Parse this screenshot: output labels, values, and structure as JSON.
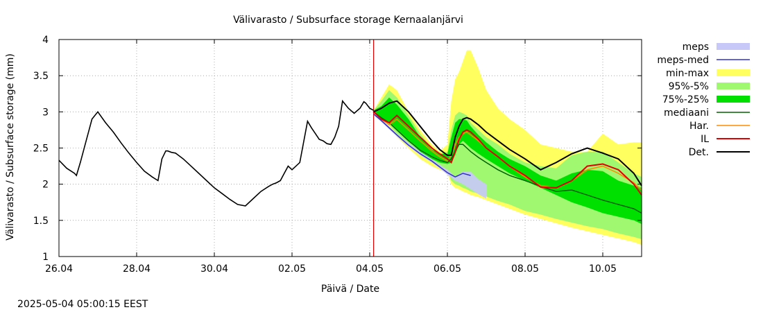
{
  "chart_data": {
    "type": "area",
    "title": "Välivarasto / Subsurface storage  Kernaalanjärvi",
    "xlabel": "Päivä / Date",
    "ylabel": "Välivarasto / Subsurface storage (mm)",
    "timestamp": "2025-05-04  05:00:15 EEST",
    "xlim": [
      0,
      15
    ],
    "ylim": [
      1,
      4
    ],
    "x_unit": "days since 26.04",
    "x_ticks": [
      {
        "x": 0,
        "label": "26.04"
      },
      {
        "x": 2,
        "label": "28.04"
      },
      {
        "x": 4,
        "label": "30.04"
      },
      {
        "x": 6,
        "label": "02.05"
      },
      {
        "x": 8,
        "label": "04.05"
      },
      {
        "x": 10,
        "label": "06.05"
      },
      {
        "x": 12,
        "label": "08.05"
      },
      {
        "x": 14,
        "label": "10.05"
      }
    ],
    "y_ticks": [
      {
        "y": 1,
        "label": "1"
      },
      {
        "y": 1.5,
        "label": "1.5"
      },
      {
        "y": 2,
        "label": "2"
      },
      {
        "y": 2.5,
        "label": "2.5"
      },
      {
        "y": 3,
        "label": "3"
      },
      {
        "y": 3.5,
        "label": "3.5"
      },
      {
        "y": 4,
        "label": "4"
      }
    ],
    "forecast_start": 8.1,
    "colors": {
      "meps": "#c8c8f8",
      "meps_med": "#3030c8",
      "minmax": "#ffff60",
      "p95_5": "#a0f870",
      "p75_25": "#00e000",
      "mediaani": "#006000",
      "har": "#ff8c00",
      "il": "#e00000",
      "det": "#000000",
      "forecast_line": "#e00000"
    },
    "legend": [
      {
        "key": "meps",
        "label": "meps",
        "style": "band"
      },
      {
        "key": "meps_med",
        "label": "meps-med",
        "style": "line"
      },
      {
        "key": "minmax",
        "label": "min-max",
        "style": "band"
      },
      {
        "key": "p95_5",
        "label": "95%-5%",
        "style": "band"
      },
      {
        "key": "p75_25",
        "label": "75%-25%",
        "style": "band"
      },
      {
        "key": "mediaani",
        "label": "mediaani",
        "style": "line"
      },
      {
        "key": "har",
        "label": "Har.",
        "style": "line"
      },
      {
        "key": "il",
        "label": "IL",
        "style": "line"
      },
      {
        "key": "det",
        "label": "Det.",
        "style": "line"
      }
    ],
    "observed": {
      "x": [
        0,
        0.2,
        0.4,
        0.45,
        0.55,
        0.7,
        0.85,
        1.0,
        1.2,
        1.4,
        1.6,
        1.8,
        2.0,
        2.2,
        2.4,
        2.55,
        2.65,
        2.75,
        2.8,
        2.9,
        3.0,
        3.2,
        3.4,
        3.6,
        3.8,
        4.0,
        4.2,
        4.4,
        4.6,
        4.8,
        5.0,
        5.2,
        5.4,
        5.5,
        5.6,
        5.7,
        5.8,
        5.9,
        6.0,
        6.2,
        6.4,
        6.5,
        6.6,
        6.7,
        6.8,
        6.9,
        7.0,
        7.1,
        7.2,
        7.3,
        7.45,
        7.6,
        7.75,
        7.85,
        7.9,
        8.0,
        8.1
      ],
      "y": [
        2.33,
        2.22,
        2.15,
        2.12,
        2.3,
        2.6,
        2.9,
        3.0,
        2.85,
        2.72,
        2.57,
        2.43,
        2.3,
        2.18,
        2.1,
        2.05,
        2.35,
        2.46,
        2.46,
        2.44,
        2.43,
        2.35,
        2.25,
        2.15,
        2.05,
        1.95,
        1.87,
        1.79,
        1.72,
        1.7,
        1.8,
        1.9,
        1.97,
        2.0,
        2.02,
        2.05,
        2.15,
        2.25,
        2.2,
        2.3,
        2.87,
        2.78,
        2.7,
        2.62,
        2.6,
        2.56,
        2.55,
        2.65,
        2.8,
        3.15,
        3.05,
        2.98,
        3.05,
        3.14,
        3.12,
        3.05,
        3.02
      ]
    },
    "forecast_x": [
      8.1,
      8.3,
      8.5,
      8.7,
      9.0,
      9.3,
      9.6,
      9.8,
      10.0,
      10.1,
      10.2,
      10.3,
      10.4,
      10.5,
      10.6,
      10.8,
      11.0,
      11.3,
      11.6,
      12.0,
      12.4,
      12.8,
      13.2,
      13.6,
      14.0,
      14.4,
      14.8,
      15.0
    ],
    "bands": {
      "minmax": {
        "lo": [
          3.0,
          2.95,
          2.8,
          2.65,
          2.5,
          2.35,
          2.25,
          2.2,
          2.15,
          2.0,
          1.95,
          1.93,
          1.9,
          1.88,
          1.85,
          1.82,
          1.78,
          1.72,
          1.66,
          1.58,
          1.52,
          1.46,
          1.4,
          1.35,
          1.3,
          1.25,
          1.2,
          1.16
        ],
        "hi": [
          3.02,
          3.2,
          3.38,
          3.3,
          3.0,
          2.75,
          2.55,
          2.45,
          2.55,
          3.15,
          3.45,
          3.55,
          3.7,
          3.85,
          3.85,
          3.6,
          3.3,
          3.05,
          2.9,
          2.75,
          2.55,
          2.5,
          2.45,
          2.45,
          2.7,
          2.55,
          2.58,
          2.58
        ]
      },
      "p95_5": {
        "lo": [
          3.0,
          2.93,
          2.82,
          2.7,
          2.55,
          2.4,
          2.3,
          2.25,
          2.2,
          2.05,
          2.0,
          1.98,
          1.95,
          1.93,
          1.9,
          1.87,
          1.83,
          1.77,
          1.72,
          1.63,
          1.58,
          1.52,
          1.47,
          1.42,
          1.38,
          1.32,
          1.27,
          1.24
        ],
        "hi": [
          3.02,
          3.15,
          3.3,
          3.2,
          2.95,
          2.7,
          2.5,
          2.42,
          2.45,
          2.75,
          2.95,
          3.0,
          2.98,
          2.95,
          2.85,
          2.75,
          2.65,
          2.55,
          2.42,
          2.3,
          2.25,
          2.22,
          2.4,
          2.45,
          2.45,
          2.3,
          2.15,
          2.1
        ]
      },
      "p75_25": {
        "lo": [
          3.0,
          2.92,
          2.85,
          2.75,
          2.6,
          2.45,
          2.35,
          2.3,
          2.28,
          2.3,
          2.4,
          2.55,
          2.6,
          2.55,
          2.5,
          2.42,
          2.35,
          2.25,
          2.15,
          2.05,
          1.95,
          1.85,
          1.75,
          1.68,
          1.6,
          1.55,
          1.5,
          1.45
        ],
        "hi": [
          3.02,
          3.08,
          3.2,
          3.1,
          2.9,
          2.65,
          2.48,
          2.42,
          2.42,
          2.65,
          2.85,
          2.9,
          2.9,
          2.88,
          2.8,
          2.68,
          2.58,
          2.45,
          2.35,
          2.25,
          2.12,
          2.05,
          2.15,
          2.2,
          2.18,
          2.05,
          1.98,
          1.95
        ]
      },
      "meps": {
        "x": [
          8.1,
          8.3,
          8.5,
          8.7,
          9.0,
          9.3,
          9.6,
          9.8,
          10.0,
          10.2,
          10.4,
          10.6,
          10.8,
          11.0
        ],
        "lo": [
          2.96,
          2.86,
          2.76,
          2.66,
          2.52,
          2.4,
          2.3,
          2.22,
          2.13,
          2.05,
          2.0,
          1.93,
          1.86,
          1.8
        ],
        "hi": [
          2.98,
          2.9,
          2.8,
          2.7,
          2.57,
          2.45,
          2.35,
          2.27,
          2.2,
          2.1,
          2.18,
          2.17,
          2.07,
          2.0
        ]
      }
    },
    "lines": {
      "mediaani": [
        3.0,
        2.92,
        2.85,
        2.75,
        2.6,
        2.47,
        2.38,
        2.33,
        2.3,
        2.35,
        2.45,
        2.55,
        2.55,
        2.5,
        2.45,
        2.37,
        2.3,
        2.2,
        2.12,
        2.05,
        1.97,
        1.9,
        1.92,
        1.85,
        1.78,
        1.72,
        1.66,
        1.6
      ],
      "har": [
        3.0,
        2.9,
        2.82,
        2.9,
        2.75,
        2.6,
        2.46,
        2.38,
        2.32,
        2.4,
        2.55,
        2.65,
        2.7,
        2.72,
        2.68,
        2.6,
        2.5,
        2.38,
        2.25,
        2.1,
        1.98,
        1.95,
        2.05,
        2.2,
        2.25,
        2.15,
        2.02,
        1.92
      ],
      "il": [
        3.0,
        2.9,
        2.85,
        2.95,
        2.8,
        2.65,
        2.5,
        2.42,
        2.35,
        2.3,
        2.45,
        2.62,
        2.72,
        2.75,
        2.72,
        2.62,
        2.5,
        2.38,
        2.25,
        2.12,
        1.96,
        1.95,
        2.05,
        2.25,
        2.28,
        2.2,
        2.0,
        1.85
      ],
      "det": [
        3.0,
        3.05,
        3.12,
        3.15,
        3.0,
        2.8,
        2.6,
        2.48,
        2.4,
        2.4,
        2.65,
        2.8,
        2.9,
        2.92,
        2.9,
        2.82,
        2.72,
        2.6,
        2.48,
        2.35,
        2.2,
        2.3,
        2.42,
        2.5,
        2.43,
        2.35,
        2.15,
        1.98
      ]
    },
    "meps_med": {
      "x": [
        8.1,
        8.3,
        8.5,
        8.7,
        9.0,
        9.3,
        9.6,
        9.8,
        10.0,
        10.2,
        10.4,
        10.6
      ],
      "y": [
        2.97,
        2.88,
        2.78,
        2.68,
        2.54,
        2.42,
        2.32,
        2.24,
        2.16,
        2.1,
        2.15,
        2.12
      ]
    }
  }
}
